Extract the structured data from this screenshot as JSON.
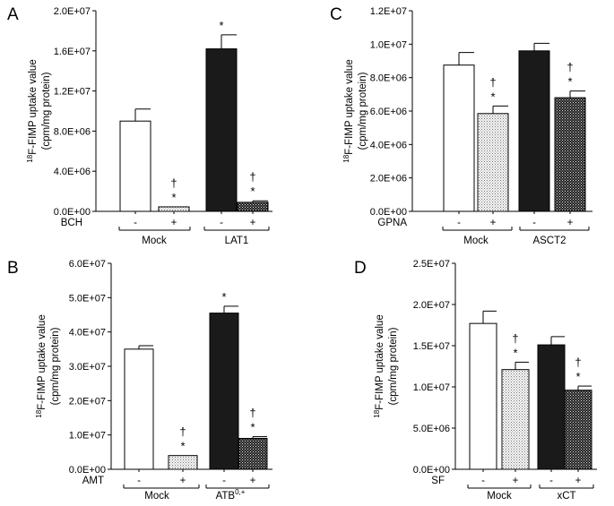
{
  "chart_data": [
    {
      "panel": "A",
      "type": "bar",
      "ylabel_line1_superscript": "18",
      "ylabel_line1": "F-FIMP uptake value",
      "ylabel_line2": "(cpm/mg protein)",
      "ylim": [
        0,
        20000000
      ],
      "yticks": [
        0,
        4000000,
        8000000,
        12000000,
        16000000,
        20000000
      ],
      "ytick_labels": [
        "0.0E+00",
        "4.0E+06",
        "8.0E+06",
        "1.2E+07",
        "1.6E+07",
        "2.0E+07"
      ],
      "factor_label": "BCH",
      "condition_labels": [
        "-",
        "+",
        "-",
        "+"
      ],
      "groups": [
        {
          "label": "Mock",
          "label_sup": ""
        },
        {
          "label": "LAT1",
          "label_sup": ""
        }
      ],
      "bars": [
        {
          "value": 9000000,
          "error": 1200000,
          "fill": "white",
          "markers": []
        },
        {
          "value": 450000,
          "error": 0,
          "fill": "dots",
          "markers": [
            "*",
            "†"
          ]
        },
        {
          "value": 16200000,
          "error": 1400000,
          "fill": "black",
          "markers": [
            "*"
          ]
        },
        {
          "value": 900000,
          "error": 150000,
          "fill": "dark-dots",
          "markers": [
            "*",
            "†"
          ]
        }
      ]
    },
    {
      "panel": "B",
      "type": "bar",
      "ylabel_line1_superscript": "18",
      "ylabel_line1": "F-FIMP uptake value",
      "ylabel_line2": "(cpm/mg protein)",
      "ylim": [
        0,
        60000000
      ],
      "yticks": [
        0,
        10000000,
        20000000,
        30000000,
        40000000,
        50000000,
        60000000
      ],
      "ytick_labels": [
        "0.0E+00",
        "1.0E+07",
        "2.0E+07",
        "3.0E+07",
        "4.0E+07",
        "5.0E+07",
        "6.0E+07"
      ],
      "factor_label": "AMT",
      "condition_labels": [
        "-",
        "+",
        "-",
        "+"
      ],
      "groups": [
        {
          "label": "Mock",
          "label_sup": ""
        },
        {
          "label": "ATB",
          "label_sup": "0,+"
        }
      ],
      "bars": [
        {
          "value": 35000000,
          "error": 1000000,
          "fill": "white",
          "markers": []
        },
        {
          "value": 4000000,
          "error": 0,
          "fill": "dots",
          "markers": [
            "*",
            "†"
          ]
        },
        {
          "value": 45500000,
          "error": 2000000,
          "fill": "black",
          "markers": [
            "*"
          ]
        },
        {
          "value": 9000000,
          "error": 500000,
          "fill": "dark-dots",
          "markers": [
            "*",
            "†"
          ]
        }
      ]
    },
    {
      "panel": "C",
      "type": "bar",
      "ylabel_line1_superscript": "18",
      "ylabel_line1": "F-FIMP uptake value",
      "ylabel_line2": "(cpm/mg protein)",
      "ylim": [
        0,
        12000000
      ],
      "yticks": [
        0,
        2000000,
        4000000,
        6000000,
        8000000,
        10000000,
        12000000
      ],
      "ytick_labels": [
        "0.0E+00",
        "2.0E+06",
        "4.0E+06",
        "6.0E+06",
        "8.0E+06",
        "1.0E+07",
        "1.2E+07"
      ],
      "factor_label": "GPNA",
      "condition_labels": [
        "-",
        "+",
        "-",
        "+"
      ],
      "groups": [
        {
          "label": "Mock",
          "label_sup": ""
        },
        {
          "label": "ASCT2",
          "label_sup": ""
        }
      ],
      "bars": [
        {
          "value": 8750000,
          "error": 750000,
          "fill": "white",
          "markers": []
        },
        {
          "value": 5850000,
          "error": 450000,
          "fill": "dots",
          "markers": [
            "*",
            "†"
          ]
        },
        {
          "value": 9600000,
          "error": 450000,
          "fill": "black",
          "markers": []
        },
        {
          "value": 6800000,
          "error": 400000,
          "fill": "dark-dots",
          "markers": [
            "*",
            "†"
          ]
        }
      ]
    },
    {
      "panel": "D",
      "type": "bar",
      "ylabel_line1_superscript": "18",
      "ylabel_line1": "F-FIMP uptake value",
      "ylabel_line2": "(cpm/mg protein)",
      "ylim": [
        0,
        25000000
      ],
      "yticks": [
        0,
        5000000,
        10000000,
        15000000,
        20000000,
        25000000
      ],
      "ytick_labels": [
        "0.0E+00",
        "5.0E+06",
        "1.0E+07",
        "1.5E+07",
        "2.0E+07",
        "2.5E+07"
      ],
      "factor_label": "SF",
      "condition_labels": [
        "-",
        "+",
        "-",
        "+"
      ],
      "groups": [
        {
          "label": "Mock",
          "label_sup": ""
        },
        {
          "label": "xCT",
          "label_sup": ""
        }
      ],
      "bars": [
        {
          "value": 17700000,
          "error": 1500000,
          "fill": "white",
          "markers": []
        },
        {
          "value": 12100000,
          "error": 900000,
          "fill": "dots",
          "markers": [
            "*",
            "†"
          ]
        },
        {
          "value": 15100000,
          "error": 1000000,
          "fill": "black",
          "markers": []
        },
        {
          "value": 9600000,
          "error": 500000,
          "fill": "dark-dots",
          "markers": [
            "*",
            "†"
          ]
        }
      ]
    }
  ]
}
